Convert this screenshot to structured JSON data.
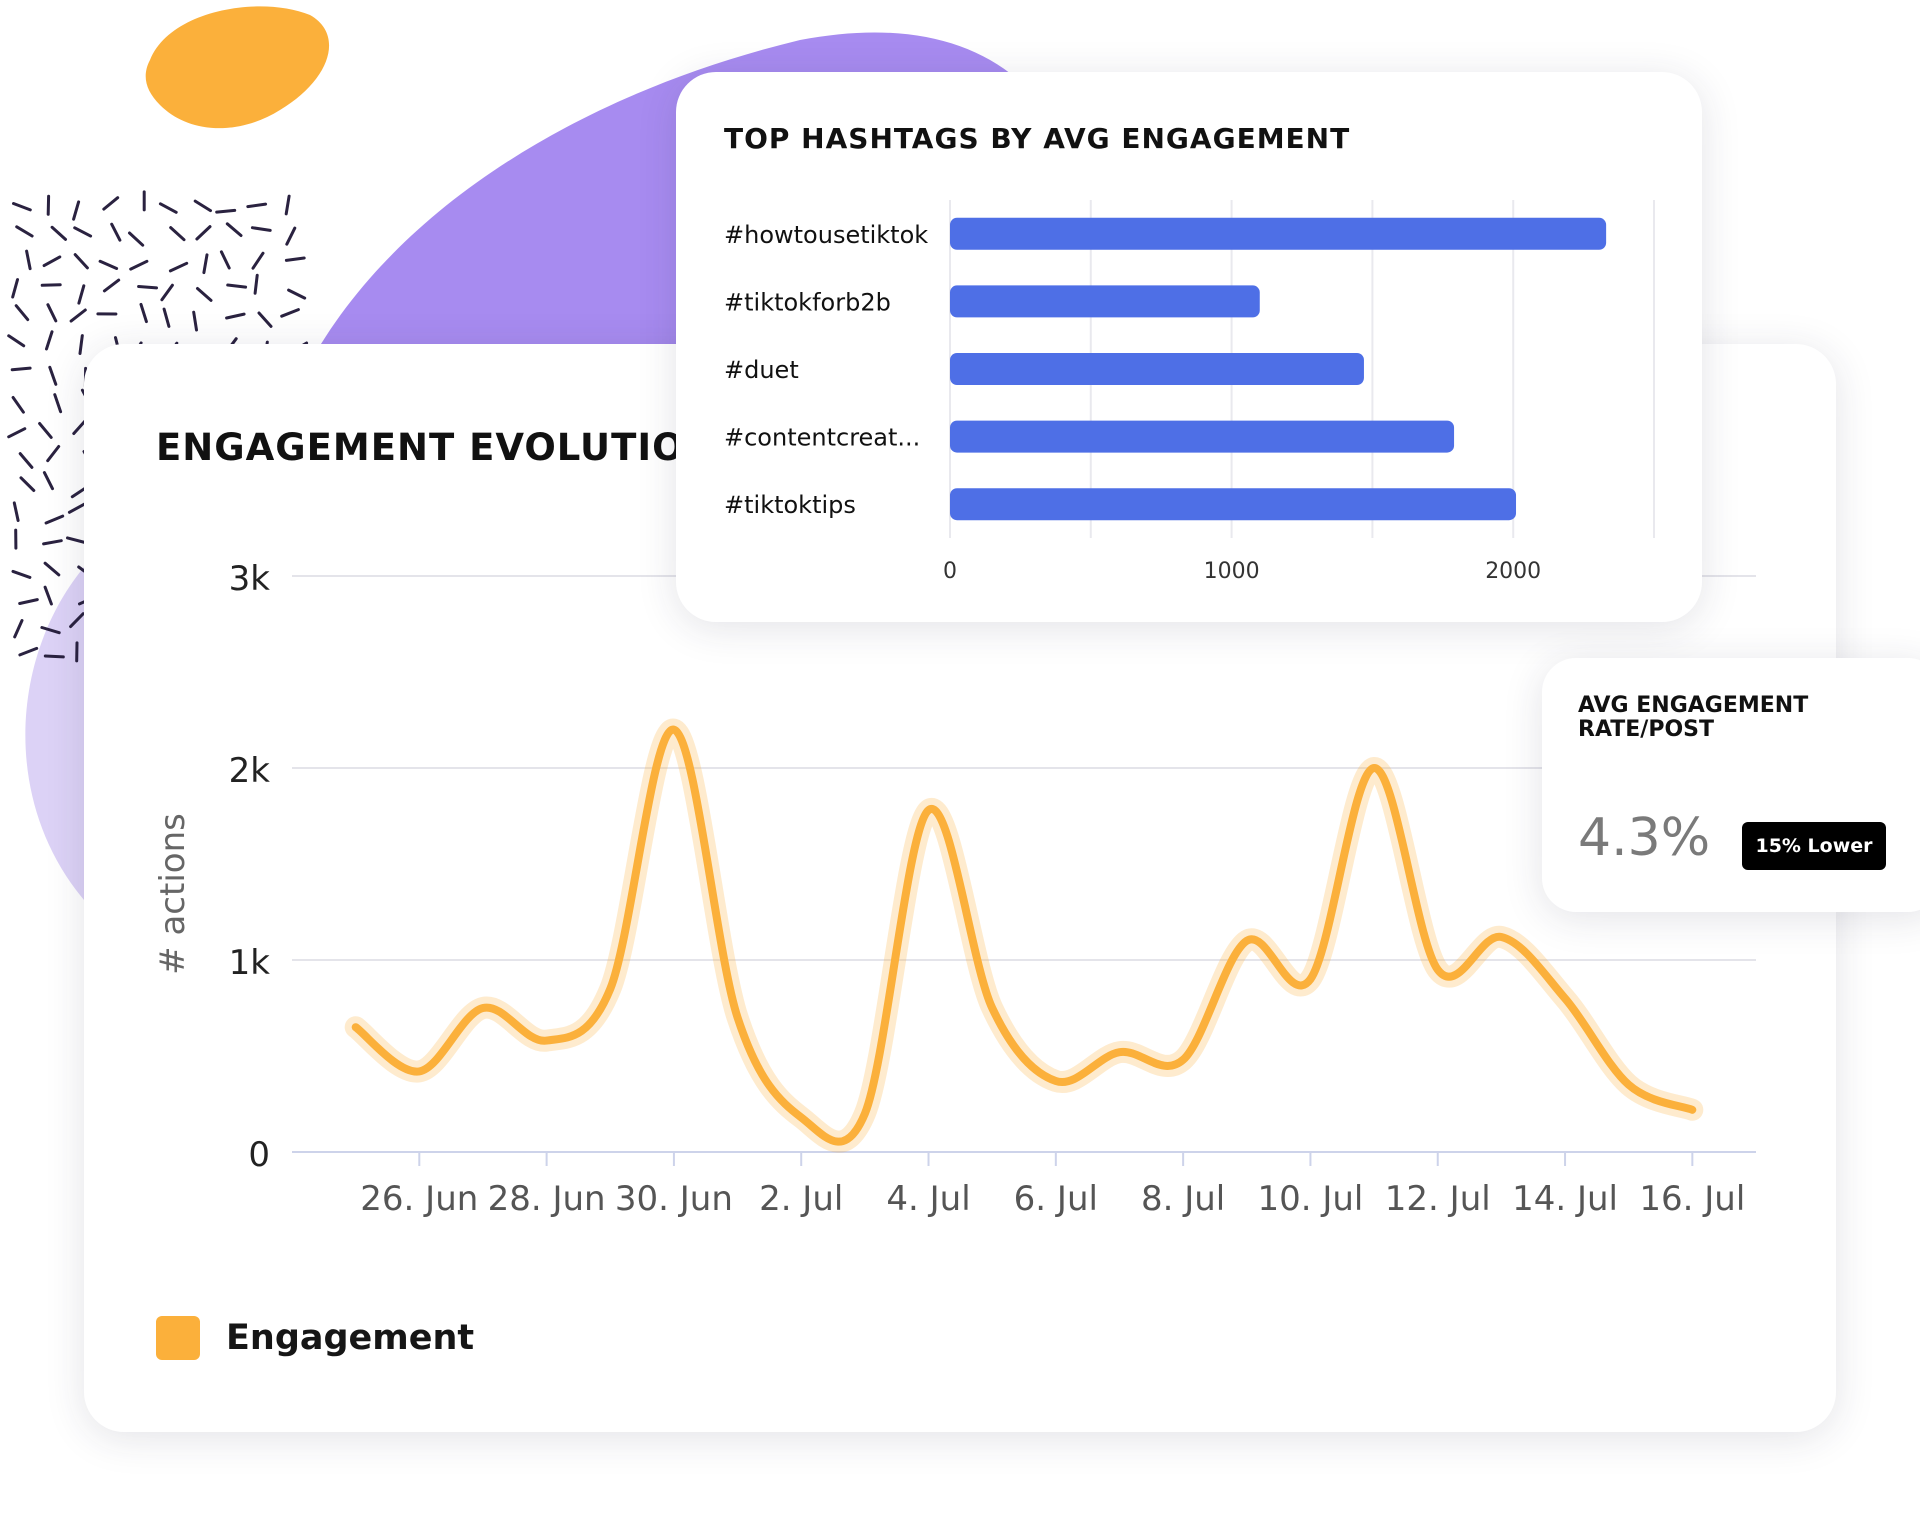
{
  "colors": {
    "line": "#FBB03B",
    "bar": "#4E6FE6",
    "purple": "#A78BF0",
    "orange": "#FBB03B"
  },
  "main_card": {
    "title": "ENGAGEMENT EVOLUTION",
    "legend_label": "Engagement"
  },
  "hashtag_card": {
    "title": "TOP HASHTAGS BY AVG ENGAGEMENT"
  },
  "rate_card": {
    "title": "AVG ENGAGEMENT RATE/POST",
    "value": "4.3%",
    "badge": "15% Lower"
  },
  "chart_data": [
    {
      "type": "line",
      "title": "ENGAGEMENT EVOLUTION",
      "ylabel": "# actions",
      "xlabel": "",
      "ylim": [
        0,
        3000
      ],
      "yticks": [
        0,
        1000,
        2000,
        3000
      ],
      "ytick_labels": [
        "0",
        "1k",
        "2k",
        "3k"
      ],
      "x_range": [
        "2023-06-24",
        "2023-07-17"
      ],
      "xticks": [
        "2023-06-26",
        "2023-06-28",
        "2023-06-30",
        "2023-07-02",
        "2023-07-04",
        "2023-07-06",
        "2023-07-08",
        "2023-07-10",
        "2023-07-12",
        "2023-07-14",
        "2023-07-16"
      ],
      "xtick_labels": [
        "26. Jun",
        "28. Jun",
        "30. Jun",
        "2. Jul",
        "4. Jul",
        "6. Jul",
        "8. Jul",
        "10. Jul",
        "12. Jul",
        "14. Jul",
        "16. Jul"
      ],
      "grid": true,
      "legend": "bottom-left",
      "series": [
        {
          "name": "Engagement",
          "color": "#FBB03B",
          "x": [
            "2023-06-25",
            "2023-06-26",
            "2023-06-27",
            "2023-06-28",
            "2023-06-29",
            "2023-06-30",
            "2023-07-01",
            "2023-07-02",
            "2023-07-03",
            "2023-07-04",
            "2023-07-05",
            "2023-07-06",
            "2023-07-07",
            "2023-07-08",
            "2023-07-09",
            "2023-07-10",
            "2023-07-11",
            "2023-07-12",
            "2023-07-13",
            "2023-07-14",
            "2023-07-15",
            "2023-07-16"
          ],
          "values": [
            650,
            420,
            750,
            580,
            850,
            2200,
            700,
            180,
            200,
            1780,
            750,
            370,
            520,
            480,
            1100,
            900,
            2000,
            950,
            1120,
            800,
            350,
            220
          ]
        }
      ]
    },
    {
      "type": "bar",
      "orientation": "horizontal",
      "title": "TOP HASHTAGS BY AVG ENGAGEMENT",
      "categories": [
        "#howtousetiktok",
        "#tiktokforb2b",
        "#duet",
        "#contentcreat...",
        "#tiktoktips"
      ],
      "values": [
        2330,
        1100,
        1470,
        1790,
        2010
      ],
      "xlim": [
        0,
        2500
      ],
      "xticks": [
        0,
        1000,
        2000
      ],
      "xtick_labels": [
        "0",
        "1000",
        "2000"
      ],
      "grid": true,
      "color": "#4E6FE6"
    }
  ]
}
